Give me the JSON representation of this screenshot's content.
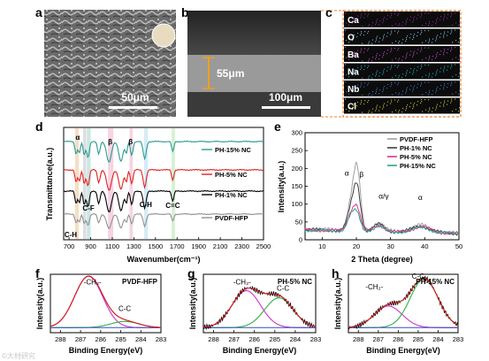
{
  "panels": {
    "a": {
      "label": "a",
      "scale_bar": "50μm"
    },
    "b": {
      "label": "b",
      "scale_bar": "100μm",
      "thickness": "55μm"
    },
    "c": {
      "label": "c",
      "elements": [
        "Ca",
        "O",
        "Ba",
        "Na",
        "Nb",
        "Cl"
      ],
      "element_colors": [
        "#8a2a9e",
        "#7ab8d8",
        "#c040c8",
        "#20a8b8",
        "#3878c8",
        "#c8c030"
      ]
    },
    "d": {
      "label": "d"
    },
    "e": {
      "label": "e"
    },
    "f": {
      "label": "f"
    },
    "g": {
      "label": "g"
    },
    "h": {
      "label": "h"
    }
  },
  "chart_data": [
    {
      "id": "d",
      "type": "line",
      "xlabel": "Wavenumber(cm⁻¹)",
      "ylabel": "Transmittance(a.u.)",
      "xlim": [
        650,
        2500
      ],
      "xticks": [
        700,
        900,
        1100,
        1300,
        1500,
        1700,
        1900,
        2100,
        2300,
        2500
      ],
      "band_labels": [
        "α",
        "β",
        "β",
        "C-H",
        "C-F",
        "C-H",
        "C=C"
      ],
      "series": [
        {
          "name": "PH-15% NC",
          "color": "#2a9a90"
        },
        {
          "name": "PH-5% NC",
          "color": "#e02020"
        },
        {
          "name": "PH-1% NC",
          "color": "#000000"
        },
        {
          "name": "PVDF-HFP",
          "color": "#909090"
        }
      ]
    },
    {
      "id": "e",
      "type": "line",
      "xlabel": "2 Theta (degree)",
      "ylabel": "Intensity(a.u.)",
      "xlim": [
        5,
        50
      ],
      "ylim": [
        0,
        300
      ],
      "xticks": [
        10,
        20,
        30,
        40,
        50
      ],
      "yticks": [
        0,
        50,
        100,
        150,
        200,
        250,
        300
      ],
      "peak_labels": [
        "α",
        "β",
        "α/γ",
        "α"
      ],
      "series": [
        {
          "name": "PVDF-HFP",
          "color": "#a0a0a0"
        },
        {
          "name": "PH-1% NC",
          "color": "#404040"
        },
        {
          "name": "PH-5% NC",
          "color": "#e03090"
        },
        {
          "name": "PH-15% NC",
          "color": "#30a090"
        }
      ]
    },
    {
      "id": "f",
      "type": "line",
      "title": "PVDF-HFP",
      "xlabel": "Binding Energy(eV)",
      "ylabel": "Intensity(a.u.)",
      "xlim": [
        288.5,
        283
      ],
      "xticks": [
        288,
        287,
        286,
        285,
        284,
        283
      ],
      "peaks": [
        "-CH₂-",
        "C-C"
      ]
    },
    {
      "id": "g",
      "type": "line",
      "title": "PH-5% NC",
      "xlabel": "Binding Energy(eV)",
      "ylabel": "Intensity(a.u.)",
      "xlim": [
        288.5,
        283
      ],
      "xticks": [
        288,
        287,
        286,
        285,
        284,
        283
      ],
      "peaks": [
        "-CH₂-",
        "C-C"
      ]
    },
    {
      "id": "h",
      "type": "line",
      "title": "PH-15% NC",
      "xlabel": "Binding Energy(eV)",
      "ylabel": "Intensity(a.u.)",
      "xlim": [
        288.5,
        283
      ],
      "xticks": [
        288,
        287,
        286,
        285,
        284,
        283
      ],
      "peaks": [
        "-CH₂-",
        "C-C"
      ]
    }
  ]
}
